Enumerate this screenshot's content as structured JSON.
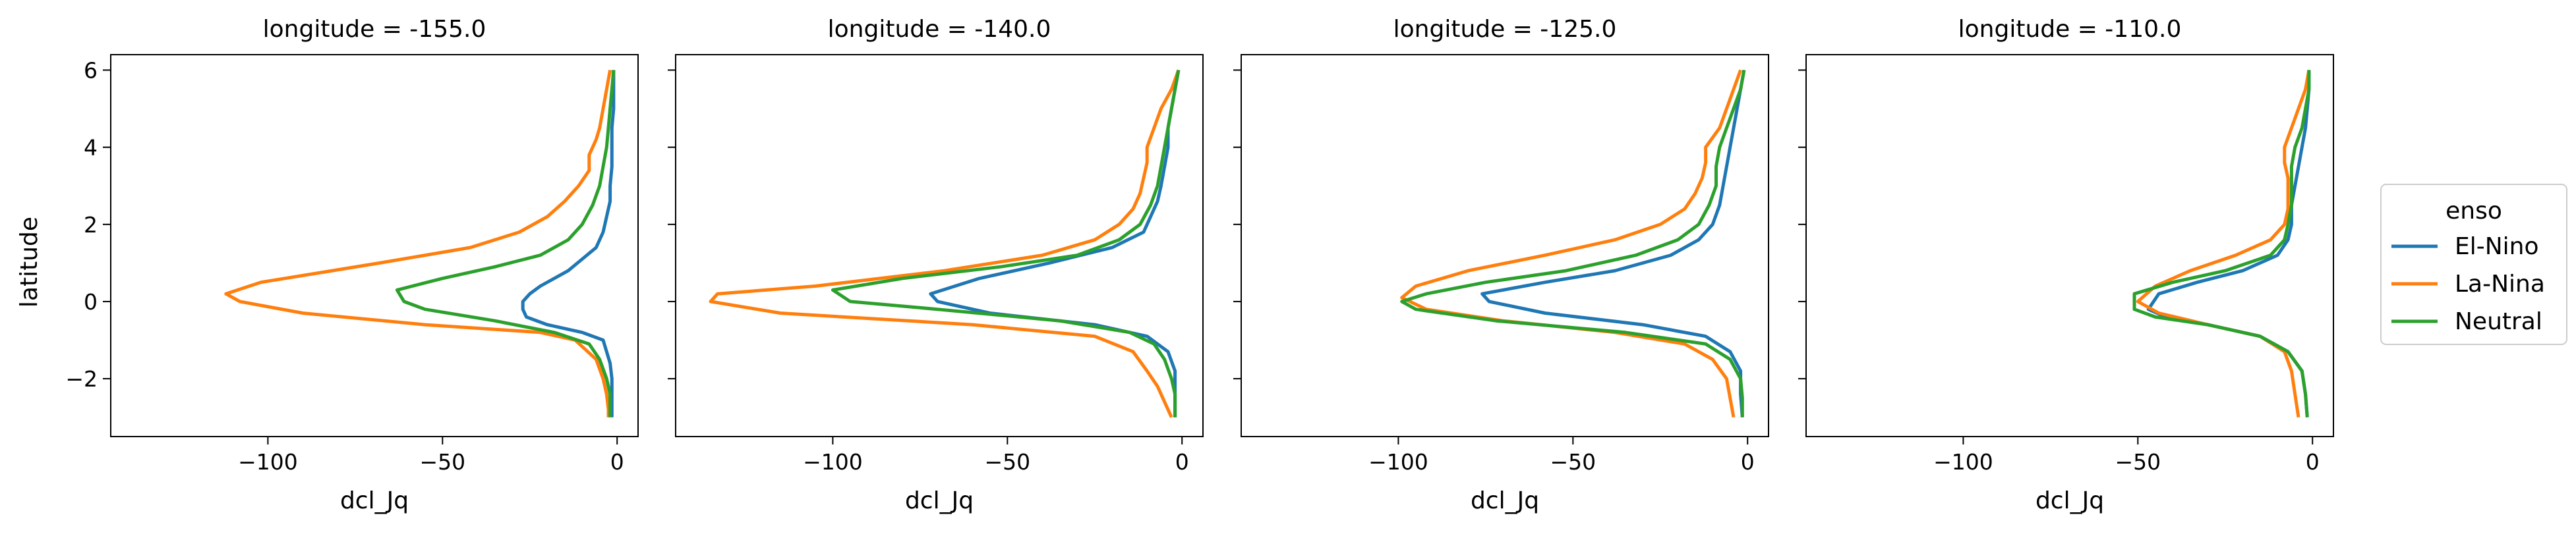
{
  "chart_data": {
    "type": "line",
    "ylabel": "latitude",
    "xlabel": "dcl_Jq",
    "xlim": [
      -145,
      6
    ],
    "ylim": [
      -3.5,
      6.4
    ],
    "xticks": [
      -100,
      -50,
      0
    ],
    "xtick_labels": [
      "−100",
      "−50",
      "0"
    ],
    "yticks": [
      -2,
      0,
      2,
      4,
      6
    ],
    "ytick_labels": [
      "−2",
      "0",
      "2",
      "4",
      "6"
    ],
    "legend": {
      "title": "enso",
      "placement": "right",
      "entries": [
        "El-Nino",
        "La-Nina",
        "Neutral"
      ]
    },
    "series_colors": {
      "El-Nino": "#1f77b4",
      "La-Nina": "#ff7f0e",
      "Neutral": "#2ca02c"
    },
    "panels": [
      {
        "title": "longitude = -155.0",
        "series": [
          {
            "name": "El-Nino",
            "x": [
              -1,
              -1,
              -1,
              -1.5,
              -1.5,
              -1.5,
              -2,
              -2,
              -3,
              -4,
              -6,
              -10,
              -14,
              -18,
              -22,
              -25,
              -27,
              -27,
              -26,
              -20,
              -10,
              -4,
              -2,
              -1.5,
              -1.5,
              -1.5
            ],
            "y": [
              6,
              5.5,
              5,
              4.5,
              4,
              3.5,
              3,
              2.6,
              2.2,
              1.8,
              1.4,
              1.1,
              0.8,
              0.6,
              0.4,
              0.2,
              0,
              -0.2,
              -0.4,
              -0.6,
              -0.8,
              -1,
              -1.6,
              -2,
              -2.5,
              -3
            ]
          },
          {
            "name": "La-Nina",
            "x": [
              -2,
              -3,
              -4,
              -5,
              -6,
              -8,
              -8,
              -11,
              -15,
              -20,
              -28,
              -42,
              -68,
              -102,
              -112,
              -108,
              -90,
              -55,
              -22,
              -12,
              -6,
              -4,
              -3,
              -2.5,
              -2.5
            ],
            "y": [
              6,
              5.5,
              5,
              4.5,
              4.2,
              3.8,
              3.4,
              3,
              2.6,
              2.2,
              1.8,
              1.4,
              1,
              0.5,
              0.2,
              0,
              -0.3,
              -0.6,
              -0.8,
              -1,
              -1.5,
              -2,
              -2.4,
              -2.8,
              -3
            ]
          },
          {
            "name": "Neutral",
            "x": [
              -1,
              -1.5,
              -2,
              -2.5,
              -3,
              -4,
              -5,
              -7,
              -10,
              -14,
              -22,
              -35,
              -50,
              -63,
              -61,
              -55,
              -35,
              -18,
              -8,
              -5,
              -3,
              -2,
              -2,
              -2
            ],
            "y": [
              6,
              5.5,
              5,
              4.5,
              4,
              3.5,
              3,
              2.5,
              2,
              1.6,
              1.2,
              0.9,
              0.6,
              0.3,
              0,
              -0.2,
              -0.5,
              -0.8,
              -1.1,
              -1.5,
              -2,
              -2.4,
              -2.7,
              -3
            ]
          }
        ]
      },
      {
        "title": "longitude = -140.0",
        "series": [
          {
            "name": "El-Nino",
            "x": [
              -1,
              -2,
              -3,
              -4,
              -4,
              -5,
              -6,
              -7,
              -9,
              -11,
              -20,
              -38,
              -58,
              -72,
              -70,
              -55,
              -25,
              -10,
              -4,
              -2,
              -2,
              -2
            ],
            "y": [
              6,
              5.5,
              5,
              4.5,
              4,
              3.5,
              3,
              2.6,
              2.2,
              1.8,
              1.4,
              1,
              0.6,
              0.2,
              0,
              -0.3,
              -0.6,
              -0.9,
              -1.3,
              -1.8,
              -2.3,
              -3
            ]
          },
          {
            "name": "La-Nina",
            "x": [
              -1,
              -3,
              -6,
              -8,
              -10,
              -10,
              -11,
              -12,
              -14,
              -18,
              -25,
              -40,
              -68,
              -105,
              -133,
              -135,
              -115,
              -60,
              -25,
              -14,
              -10,
              -7,
              -5,
              -3
            ],
            "y": [
              6,
              5.5,
              5,
              4.5,
              4,
              3.6,
              3.2,
              2.8,
              2.4,
              2,
              1.6,
              1.2,
              0.8,
              0.4,
              0.2,
              0,
              -0.3,
              -0.6,
              -0.9,
              -1.3,
              -1.8,
              -2.2,
              -2.6,
              -3
            ]
          },
          {
            "name": "Neutral",
            "x": [
              -1,
              -2,
              -3,
              -4,
              -5,
              -6,
              -7,
              -9,
              -12,
              -18,
              -30,
              -52,
              -80,
              -100,
              -95,
              -70,
              -35,
              -15,
              -8,
              -5,
              -3,
              -2,
              -2,
              -2
            ],
            "y": [
              6,
              5.5,
              5,
              4.5,
              4,
              3.5,
              3,
              2.5,
              2,
              1.6,
              1.2,
              0.9,
              0.6,
              0.3,
              0,
              -0.2,
              -0.5,
              -0.8,
              -1.1,
              -1.5,
              -2,
              -2.4,
              -2.7,
              -3
            ]
          }
        ]
      },
      {
        "title": "longitude = -125.0",
        "series": [
          {
            "name": "El-Nino",
            "x": [
              -1,
              -2,
              -3,
              -4,
              -5,
              -6,
              -7,
              -8,
              -10,
              -14,
              -22,
              -38,
              -58,
              -76,
              -74,
              -58,
              -30,
              -12,
              -5,
              -2,
              -2,
              -1.5
            ],
            "y": [
              6,
              5.5,
              5,
              4.5,
              4,
              3.5,
              3,
              2.5,
              2,
              1.6,
              1.2,
              0.8,
              0.5,
              0.2,
              0,
              -0.3,
              -0.6,
              -0.9,
              -1.3,
              -1.8,
              -2.4,
              -3
            ]
          },
          {
            "name": "La-Nina",
            "x": [
              -2,
              -4,
              -6,
              -8,
              -12,
              -12,
              -13,
              -15,
              -18,
              -25,
              -38,
              -58,
              -80,
              -95,
              -99,
              -92,
              -70,
              -38,
              -18,
              -10,
              -6,
              -5,
              -4
            ],
            "y": [
              6,
              5.5,
              5,
              4.5,
              4,
              3.6,
              3.2,
              2.8,
              2.4,
              2,
              1.6,
              1.2,
              0.8,
              0.4,
              0.1,
              -0.2,
              -0.5,
              -0.8,
              -1.1,
              -1.5,
              -2,
              -2.5,
              -3
            ]
          },
          {
            "name": "Neutral",
            "x": [
              -1,
              -2,
              -4,
              -6,
              -8,
              -9,
              -9,
              -11,
              -14,
              -20,
              -32,
              -52,
              -75,
              -92,
              -99,
              -95,
              -72,
              -35,
              -12,
              -5,
              -2,
              -1.5,
              -1.5
            ],
            "y": [
              6,
              5.5,
              5,
              4.5,
              4,
              3.5,
              3,
              2.5,
              2,
              1.6,
              1.2,
              0.8,
              0.5,
              0.2,
              0,
              -0.2,
              -0.5,
              -0.8,
              -1.1,
              -1.5,
              -2,
              -2.5,
              -3
            ]
          }
        ]
      },
      {
        "title": "longitude = -110.0",
        "series": [
          {
            "name": "El-Nino",
            "x": [
              -1,
              -1,
              -1.5,
              -2,
              -3,
              -4,
              -5,
              -6,
              -6,
              -7,
              -10,
              -20,
              -33,
              -44,
              -47,
              -42,
              -30,
              -15,
              -7,
              -3,
              -2,
              -1.5
            ],
            "y": [
              6,
              5.5,
              5,
              4.5,
              4,
              3.5,
              3,
              2.5,
              2,
              1.6,
              1.2,
              0.8,
              0.5,
              0.2,
              -0.2,
              -0.4,
              -0.6,
              -0.9,
              -1.3,
              -1.8,
              -2.4,
              -3
            ]
          },
          {
            "name": "La-Nina",
            "x": [
              -1,
              -2,
              -4,
              -6,
              -8,
              -8,
              -7,
              -7,
              -7,
              -8,
              -12,
              -22,
              -35,
              -45,
              -50,
              -44,
              -30,
              -15,
              -8,
              -6,
              -5,
              -4
            ],
            "y": [
              6,
              5.5,
              5,
              4.5,
              4,
              3.6,
              3.2,
              2.8,
              2.4,
              2,
              1.6,
              1.2,
              0.8,
              0.4,
              0,
              -0.3,
              -0.6,
              -0.9,
              -1.3,
              -1.8,
              -2.4,
              -3
            ]
          },
          {
            "name": "Neutral",
            "x": [
              -1,
              -1,
              -2,
              -3,
              -5,
              -6,
              -6,
              -6,
              -7,
              -8,
              -12,
              -25,
              -40,
              -51,
              -51,
              -45,
              -30,
              -15,
              -7,
              -3,
              -2,
              -1.5
            ],
            "y": [
              6,
              5.5,
              5,
              4.5,
              4,
              3.5,
              3,
              2.5,
              2,
              1.6,
              1.2,
              0.8,
              0.5,
              0.2,
              -0.2,
              -0.4,
              -0.6,
              -0.9,
              -1.3,
              -1.8,
              -2.4,
              -3
            ]
          }
        ]
      }
    ]
  }
}
